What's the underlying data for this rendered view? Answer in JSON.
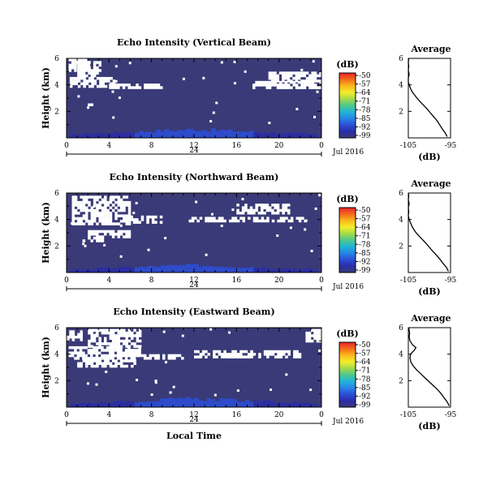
{
  "figure": {
    "date_label": "Jul 2016",
    "day_label": "24",
    "xlabel": "Local Time"
  },
  "colorbar": {
    "unit": "(dB)",
    "ticks": [
      "-50",
      "-57",
      "-64",
      "-71",
      "-78",
      "-85",
      "-92",
      "-99"
    ],
    "colors": [
      "#e8222a",
      "#f46a1c",
      "#fbb81c",
      "#f3ee2a",
      "#a6d94a",
      "#4fc98a",
      "#22b4d6",
      "#2786e8",
      "#2c4fd8",
      "#2a2da8",
      "#3a3a78"
    ]
  },
  "chart_data": [
    {
      "type": "heatmap",
      "title": "Echo Intensity (Vertical Beam)",
      "ylabel": "Height (km)",
      "xlabel": "",
      "x_ticks": [
        "0",
        "4",
        "8",
        "12",
        "16",
        "20",
        "0"
      ],
      "x_range_hours": [
        0,
        24
      ],
      "y_ticks": [
        "6",
        "4",
        "2"
      ],
      "y_range_km": [
        0,
        6
      ],
      "value_range_db": [
        -99,
        -50
      ],
      "background_db": -98,
      "gap_color": "#ffffff",
      "no_echo_regions": [
        {
          "x": [
            0.2,
            2.0
          ],
          "y": [
            5.0,
            6.0
          ]
        },
        {
          "x": [
            0.3,
            4.5
          ],
          "y": [
            3.8,
            4.6
          ]
        },
        {
          "x": [
            1.0,
            3.2
          ],
          "y": [
            4.6,
            5.8
          ]
        },
        {
          "x": [
            4.0,
            9.0
          ],
          "y": [
            3.8,
            4.1
          ]
        },
        {
          "x": [
            17.5,
            24.0
          ],
          "y": [
            3.8,
            4.3
          ]
        },
        {
          "x": [
            19.0,
            24.0
          ],
          "y": [
            4.3,
            5.0
          ]
        },
        {
          "x": [
            2.0,
            2.5
          ],
          "y": [
            2.3,
            2.6
          ]
        }
      ],
      "surface_enhancement": {
        "x_center": 12,
        "y_top_km": 0.8,
        "peak_db": -85
      },
      "average_profile": {
        "title": "Average",
        "xlabel": "(dB)",
        "x_ticks": [
          "-105",
          "-95"
        ],
        "x_range": [
          -105,
          -95
        ],
        "y_ticks": [
          "6",
          "4",
          "2"
        ],
        "y_range_km": [
          0,
          6
        ],
        "heights_km": [
          0.1,
          0.4,
          0.7,
          1.0,
          1.3,
          1.6,
          1.9,
          2.2,
          2.5,
          2.8,
          3.1,
          3.4,
          3.6,
          3.9,
          4.2,
          4.5,
          4.8,
          5.1,
          5.4,
          5.7,
          6.0
        ],
        "values_db": [
          -95.8,
          -96.3,
          -97.0,
          -97.6,
          -98.2,
          -99.0,
          -99.8,
          -100.6,
          -101.5,
          -102.4,
          -103.2,
          -103.9,
          -104.3,
          -104.7,
          -105.0,
          -105.1,
          -104.8,
          -105.2,
          -104.9,
          -105.1,
          -104.9
        ]
      }
    },
    {
      "type": "heatmap",
      "title": "Echo Intensity (Northward Beam)",
      "ylabel": "Height (km)",
      "xlabel": "",
      "x_ticks": [
        "0",
        "4",
        "8",
        "12",
        "16",
        "20",
        "0"
      ],
      "x_range_hours": [
        0,
        24
      ],
      "y_ticks": [
        "6",
        "4",
        "2"
      ],
      "y_range_km": [
        0,
        6
      ],
      "value_range_db": [
        -99,
        -50
      ],
      "background_db": -98,
      "gap_color": "#ffffff",
      "no_echo_regions": [
        {
          "x": [
            0.5,
            6.0
          ],
          "y": [
            3.6,
            5.8
          ]
        },
        {
          "x": [
            6.0,
            9.0
          ],
          "y": [
            3.7,
            4.3
          ]
        },
        {
          "x": [
            11.5,
            22.5
          ],
          "y": [
            3.8,
            4.2
          ]
        },
        {
          "x": [
            16.0,
            21.0
          ],
          "y": [
            4.5,
            5.2
          ]
        },
        {
          "x": [
            2.0,
            6.0
          ],
          "y": [
            2.7,
            3.2
          ]
        },
        {
          "x": [
            1.5,
            3.5
          ],
          "y": [
            2.3,
            2.7
          ]
        }
      ],
      "surface_enhancement": {
        "x_center": 12,
        "y_top_km": 0.7,
        "peak_db": -85
      },
      "average_profile": {
        "title": "Average",
        "xlabel": "(dB)",
        "x_ticks": [
          "-105",
          "-95"
        ],
        "x_range": [
          -105,
          -95
        ],
        "y_ticks": [
          "6",
          "4",
          "2"
        ],
        "y_range_km": [
          0,
          6
        ],
        "heights_km": [
          0.1,
          0.4,
          0.7,
          1.0,
          1.3,
          1.6,
          1.9,
          2.2,
          2.5,
          2.8,
          3.1,
          3.4,
          3.7,
          4.0,
          4.3,
          4.6,
          4.9,
          5.2,
          5.5,
          5.8,
          6.0
        ],
        "values_db": [
          -95.5,
          -96.0,
          -96.8,
          -97.5,
          -98.3,
          -99.2,
          -100.0,
          -100.8,
          -101.7,
          -102.6,
          -103.4,
          -104.0,
          -104.4,
          -104.8,
          -105.0,
          -104.9,
          -105.1,
          -104.8,
          -105.0,
          -104.9,
          -105.0
        ]
      }
    },
    {
      "type": "heatmap",
      "title": "Echo Intensity (Eastward Beam)",
      "ylabel": "Height (km)",
      "xlabel": "Local Time",
      "x_ticks": [
        "0",
        "4",
        "8",
        "12",
        "16",
        "20",
        "0"
      ],
      "x_range_hours": [
        0,
        24
      ],
      "y_ticks": [
        "6",
        "4",
        "2"
      ],
      "y_range_km": [
        0,
        6
      ],
      "value_range_db": [
        -99,
        -50
      ],
      "background_db": -98,
      "gap_color": "#ffffff",
      "no_echo_regions": [
        {
          "x": [
            0.2,
            7.0
          ],
          "y": [
            3.6,
            4.6
          ]
        },
        {
          "x": [
            2.0,
            7.0
          ],
          "y": [
            4.6,
            5.9
          ]
        },
        {
          "x": [
            0.0,
            1.5
          ],
          "y": [
            5.0,
            5.8
          ]
        },
        {
          "x": [
            7.0,
            11.0
          ],
          "y": [
            3.6,
            4.0
          ]
        },
        {
          "x": [
            12.0,
            22.0
          ],
          "y": [
            3.8,
            4.3
          ]
        },
        {
          "x": [
            22.5,
            24.0
          ],
          "y": [
            5.0,
            5.9
          ]
        },
        {
          "x": [
            1.0,
            6.5
          ],
          "y": [
            3.0,
            3.6
          ]
        }
      ],
      "surface_enhancement": {
        "x_center": 12,
        "y_top_km": 0.8,
        "peak_db": -85
      },
      "average_profile": {
        "title": "Average",
        "xlabel": "(dB)",
        "x_ticks": [
          "-105",
          "-95"
        ],
        "x_range": [
          -105,
          -95
        ],
        "y_ticks": [
          "6",
          "4",
          "2"
        ],
        "y_range_km": [
          0,
          6
        ],
        "heights_km": [
          0.1,
          0.4,
          0.7,
          1.0,
          1.3,
          1.6,
          1.9,
          2.2,
          2.5,
          2.8,
          3.1,
          3.4,
          3.7,
          4.0,
          4.3,
          4.5,
          4.7,
          5.0,
          5.3,
          5.6,
          6.0
        ],
        "values_db": [
          -95.3,
          -95.8,
          -96.5,
          -97.2,
          -98.0,
          -99.0,
          -100.0,
          -101.0,
          -102.0,
          -103.0,
          -103.8,
          -104.4,
          -104.6,
          -104.5,
          -103.6,
          -103.2,
          -104.0,
          -104.6,
          -104.8,
          -104.7,
          -104.9
        ]
      }
    }
  ]
}
